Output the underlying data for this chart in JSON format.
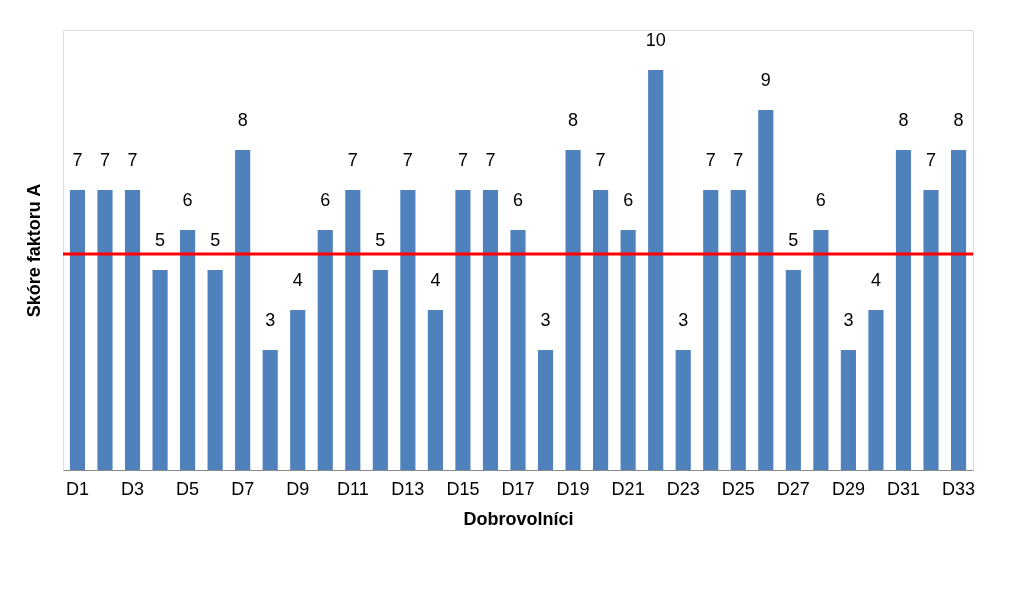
{
  "chart_data": {
    "type": "bar",
    "xlabel": "Dobrovolníci",
    "ylabel": "Skóre faktoru A",
    "categories": [
      "D1",
      null,
      "D3",
      null,
      "D5",
      null,
      "D7",
      null,
      "D9",
      null,
      "D11",
      null,
      "D13",
      null,
      "D15",
      null,
      "D17",
      null,
      "D19",
      null,
      "D21",
      null,
      "D23",
      null,
      "D25",
      null,
      "D27",
      null,
      "D29",
      null,
      "D31",
      null,
      "D33"
    ],
    "values": [
      7,
      7,
      7,
      5,
      6,
      5,
      8,
      3,
      4,
      6,
      7,
      5,
      7,
      4,
      7,
      7,
      6,
      3,
      8,
      7,
      6,
      10,
      3,
      7,
      7,
      9,
      5,
      6,
      3,
      4,
      8,
      7,
      8
    ],
    "color": "#4f81bd",
    "data_labels": true,
    "ylim": [
      0,
      11
    ],
    "tick_labels": "x",
    "grid": false,
    "ref_lines": [
      {
        "axis": "y",
        "value": 5.4,
        "color": "#ff0000"
      }
    ]
  }
}
